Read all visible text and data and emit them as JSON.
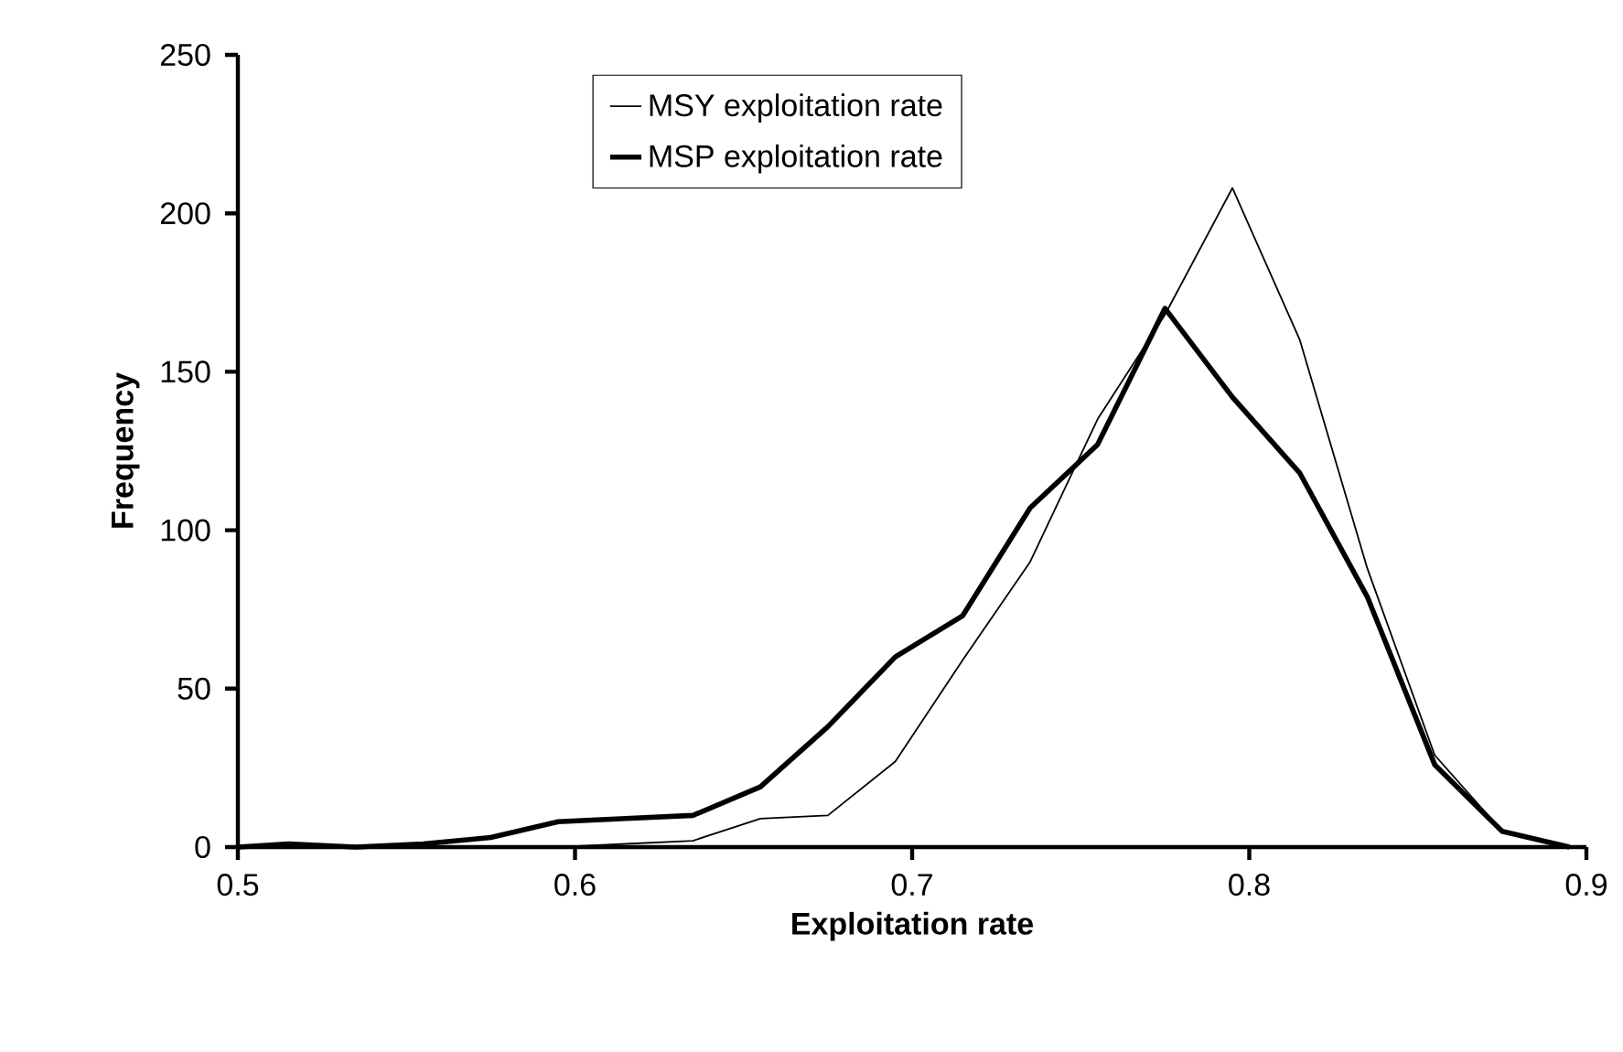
{
  "chart_data": {
    "type": "line",
    "xlabel": "Exploitation rate",
    "ylabel": "Frequency",
    "x": [
      0.5,
      0.515,
      0.535,
      0.555,
      0.575,
      0.595,
      0.615,
      0.635,
      0.655,
      0.675,
      0.695,
      0.715,
      0.735,
      0.755,
      0.775,
      0.795,
      0.815,
      0.835,
      0.855,
      0.875,
      0.895
    ],
    "series": [
      {
        "name": "MSY exploitation rate",
        "color": "#000000",
        "values": [
          0,
          0,
          0,
          0,
          0,
          0,
          1,
          2,
          9,
          10,
          27,
          59,
          90,
          135,
          168,
          208,
          160,
          88,
          29,
          5,
          0
        ]
      },
      {
        "name": "MSP exploitation rate",
        "color": "#000000",
        "values": [
          0,
          1,
          0,
          1,
          3,
          8,
          9,
          10,
          19,
          38,
          60,
          73,
          107,
          127,
          170,
          142,
          118,
          79,
          26,
          5,
          0
        ]
      }
    ],
    "xlim": [
      0.5,
      0.9
    ],
    "xticks": [
      0.5,
      0.6,
      0.7,
      0.8,
      0.9
    ],
    "ylim": [
      0,
      250
    ],
    "yticks": [
      0,
      50,
      100,
      150,
      200,
      250
    ],
    "grid": false,
    "legend": "top",
    "marker": "none",
    "line_style": "solid"
  }
}
